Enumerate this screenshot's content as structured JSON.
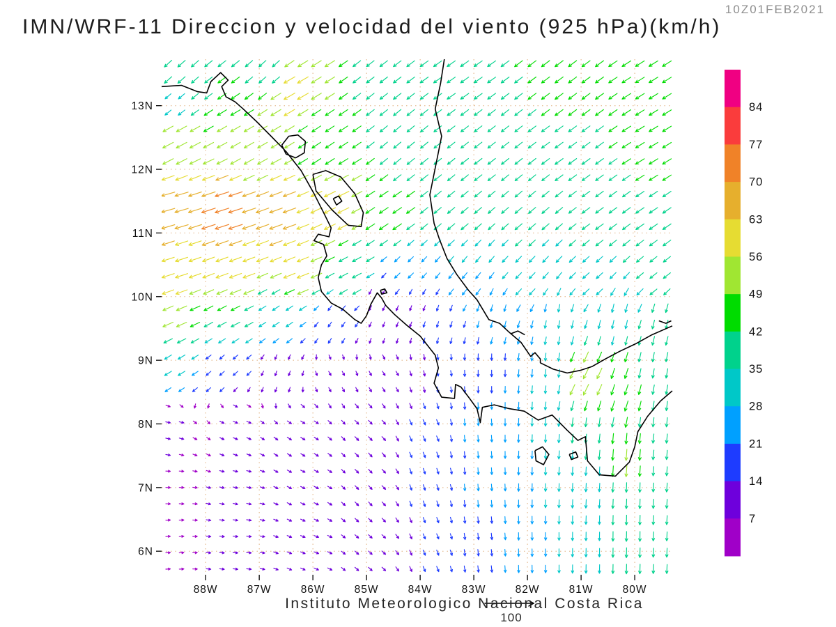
{
  "title": "IMN/WRF-11 Direccion y velocidad del viento (925 hPa)(km/h)",
  "timestamp": "10Z01FEB2021",
  "caption": "Instituto Meteorologico Nacional Costa Rica",
  "reference_vector": {
    "label": "100",
    "speed": 100
  },
  "axes": {
    "lat_labels": [
      {
        "text": "13N",
        "value": 13
      },
      {
        "text": "12N",
        "value": 12
      },
      {
        "text": "11N",
        "value": 11
      },
      {
        "text": "10N",
        "value": 10
      },
      {
        "text": "9N",
        "value": 9
      },
      {
        "text": "8N",
        "value": 8
      },
      {
        "text": "7N",
        "value": 7
      },
      {
        "text": "6N",
        "value": 6
      }
    ],
    "lon_labels": [
      {
        "text": "88W",
        "value": -88
      },
      {
        "text": "87W",
        "value": -87
      },
      {
        "text": "86W",
        "value": -86
      },
      {
        "text": "85W",
        "value": -85
      },
      {
        "text": "84W",
        "value": -84
      },
      {
        "text": "83W",
        "value": -83
      },
      {
        "text": "82W",
        "value": -82
      },
      {
        "text": "81W",
        "value": -81
      },
      {
        "text": "80W",
        "value": -80
      }
    ]
  },
  "colorbar": {
    "unit": "km/h",
    "boundary_labels_top_to_bottom": [
      "84",
      "77",
      "70",
      "63",
      "56",
      "49",
      "42",
      "35",
      "28",
      "21",
      "14",
      "7"
    ],
    "colors_bottom_to_top": [
      "#a000c8",
      "#6e00dc",
      "#1e3cff",
      "#00a0ff",
      "#00c8c8",
      "#00d28c",
      "#00dc00",
      "#a0e632",
      "#e6dc32",
      "#e6af2d",
      "#f08228",
      "#fa3c3c",
      "#f00082"
    ]
  },
  "map": {
    "extent": {
      "lon_min": -88.82,
      "lon_max": -79.3,
      "lat_min": 5.63,
      "lat_max": 13.73
    },
    "grid_lat_lines": [
      6,
      7,
      8,
      9,
      10,
      11,
      12,
      13
    ],
    "grid_lon_lines": [
      -88,
      -87,
      -86,
      -85,
      -84,
      -83,
      -82,
      -81,
      -80
    ],
    "grid_color": "#dfae7c",
    "coast_color": "#000000",
    "coastlines": [
      [
        [
          -88.82,
          13.3
        ],
        [
          -88.45,
          13.32
        ],
        [
          -88.15,
          13.22
        ],
        [
          -87.98,
          13.2
        ],
        [
          -87.9,
          13.38
        ],
        [
          -87.72,
          13.52
        ],
        [
          -87.58,
          13.4
        ],
        [
          -87.7,
          13.3
        ],
        [
          -87.62,
          13.14
        ],
        [
          -87.45,
          13.06
        ],
        [
          -87.3,
          12.95
        ],
        [
          -87.05,
          12.75
        ],
        [
          -86.78,
          12.52
        ],
        [
          -86.5,
          12.28
        ],
        [
          -86.22,
          11.98
        ],
        [
          -85.98,
          11.62
        ],
        [
          -85.8,
          11.32
        ],
        [
          -85.66,
          11.08
        ],
        [
          -85.7,
          10.94
        ],
        [
          -85.9,
          10.98
        ],
        [
          -85.98,
          10.88
        ],
        [
          -85.8,
          10.82
        ],
        [
          -85.74,
          10.64
        ],
        [
          -85.84,
          10.5
        ],
        [
          -85.9,
          10.3
        ],
        [
          -85.84,
          10.08
        ],
        [
          -85.66,
          9.9
        ],
        [
          -85.44,
          9.8
        ],
        [
          -85.22,
          9.64
        ],
        [
          -85.1,
          9.58
        ],
        [
          -85.0,
          9.7
        ],
        [
          -84.92,
          9.88
        ],
        [
          -84.8,
          10.06
        ],
        [
          -84.72,
          9.98
        ],
        [
          -84.64,
          9.86
        ],
        [
          -84.48,
          9.72
        ],
        [
          -84.25,
          9.55
        ],
        [
          -84.0,
          9.38
        ],
        [
          -83.72,
          9.08
        ],
        [
          -83.66,
          8.88
        ],
        [
          -83.74,
          8.64
        ],
        [
          -83.6,
          8.42
        ],
        [
          -83.36,
          8.4
        ],
        [
          -83.34,
          8.62
        ],
        [
          -83.24,
          8.58
        ],
        [
          -83.08,
          8.4
        ],
        [
          -82.94,
          8.24
        ],
        [
          -82.88,
          8.02
        ],
        [
          -82.84,
          8.26
        ],
        [
          -82.62,
          8.3
        ],
        [
          -82.34,
          8.24
        ],
        [
          -82.06,
          8.2
        ],
        [
          -81.8,
          8.06
        ],
        [
          -81.54,
          8.14
        ],
        [
          -81.26,
          7.9
        ],
        [
          -81.06,
          7.74
        ],
        [
          -80.92,
          7.8
        ],
        [
          -80.88,
          7.42
        ],
        [
          -80.66,
          7.2
        ],
        [
          -80.36,
          7.18
        ],
        [
          -80.1,
          7.4
        ],
        [
          -80.0,
          7.64
        ],
        [
          -79.94,
          7.88
        ],
        [
          -79.76,
          8.12
        ],
        [
          -79.52,
          8.36
        ],
        [
          -79.3,
          8.52
        ]
      ],
      [
        [
          -83.55,
          13.73
        ],
        [
          -83.62,
          13.35
        ],
        [
          -83.72,
          12.95
        ],
        [
          -83.6,
          12.52
        ],
        [
          -83.7,
          12.1
        ],
        [
          -83.82,
          11.6
        ],
        [
          -83.74,
          11.15
        ],
        [
          -83.64,
          10.9
        ],
        [
          -83.5,
          10.6
        ],
        [
          -83.32,
          10.35
        ],
        [
          -83.1,
          10.1
        ],
        [
          -82.94,
          9.95
        ],
        [
          -82.72,
          9.64
        ],
        [
          -82.52,
          9.58
        ],
        [
          -82.34,
          9.44
        ],
        [
          -82.12,
          9.28
        ],
        [
          -81.94,
          9.06
        ],
        [
          -81.86,
          9.12
        ],
        [
          -81.76,
          9.02
        ],
        [
          -81.76,
          8.96
        ],
        [
          -81.52,
          8.86
        ],
        [
          -81.26,
          8.8
        ],
        [
          -81.02,
          8.84
        ],
        [
          -80.8,
          8.9
        ],
        [
          -80.55,
          9.02
        ],
        [
          -80.28,
          9.14
        ],
        [
          -79.98,
          9.26
        ],
        [
          -79.68,
          9.4
        ],
        [
          -79.3,
          9.54
        ]
      ],
      [
        [
          -86.58,
          12.38
        ],
        [
          -86.45,
          12.52
        ],
        [
          -86.28,
          12.54
        ],
        [
          -86.14,
          12.44
        ],
        [
          -86.16,
          12.26
        ],
        [
          -86.32,
          12.18
        ],
        [
          -86.5,
          12.24
        ],
        [
          -86.58,
          12.38
        ]
      ],
      [
        [
          -86.0,
          11.92
        ],
        [
          -85.76,
          11.98
        ],
        [
          -85.48,
          11.88
        ],
        [
          -85.22,
          11.62
        ],
        [
          -85.06,
          11.32
        ],
        [
          -85.1,
          11.1
        ],
        [
          -85.34,
          11.12
        ],
        [
          -85.64,
          11.36
        ],
        [
          -85.94,
          11.66
        ],
        [
          -86.0,
          11.92
        ]
      ],
      [
        [
          -85.62,
          11.54
        ],
        [
          -85.52,
          11.58
        ],
        [
          -85.46,
          11.5
        ],
        [
          -85.56,
          11.44
        ],
        [
          -85.62,
          11.54
        ]
      ],
      [
        [
          -81.86,
          7.58
        ],
        [
          -81.72,
          7.64
        ],
        [
          -81.6,
          7.52
        ],
        [
          -81.7,
          7.36
        ],
        [
          -81.84,
          7.42
        ],
        [
          -81.86,
          7.58
        ]
      ],
      [
        [
          -81.22,
          7.52
        ],
        [
          -81.1,
          7.56
        ],
        [
          -81.06,
          7.48
        ],
        [
          -81.18,
          7.44
        ],
        [
          -81.22,
          7.52
        ]
      ],
      [
        [
          -84.74,
          10.1
        ],
        [
          -84.66,
          10.12
        ],
        [
          -84.62,
          10.06
        ],
        [
          -84.72,
          10.04
        ],
        [
          -84.74,
          10.1
        ]
      ],
      [
        [
          -82.3,
          9.42
        ],
        [
          -82.18,
          9.46
        ],
        [
          -82.05,
          9.4
        ]
      ],
      [
        [
          -79.55,
          9.62
        ],
        [
          -79.42,
          9.58
        ],
        [
          -79.32,
          9.62
        ]
      ]
    ]
  },
  "chart_data": {
    "type": "vector-field",
    "variable": "wind direction and speed, 925 hPa",
    "units": "km/h",
    "speed_levels": [
      7,
      14,
      21,
      28,
      35,
      42,
      49,
      56,
      63,
      70,
      77,
      84
    ],
    "grid_step_deg": 0.25,
    "control_points": [
      [
        -88.6,
        13.5,
        228,
        42
      ],
      [
        -86.8,
        13.55,
        228,
        38
      ],
      [
        -85.0,
        13.5,
        232,
        40
      ],
      [
        -83.2,
        13.5,
        235,
        42
      ],
      [
        -81.4,
        13.5,
        233,
        43
      ],
      [
        -79.6,
        13.4,
        238,
        45
      ],
      [
        -88.7,
        13.1,
        230,
        28
      ],
      [
        -86.4,
        13.3,
        240,
        60
      ],
      [
        -85.9,
        13.6,
        238,
        52
      ],
      [
        -88.6,
        12.4,
        242,
        55
      ],
      [
        -87.2,
        12.4,
        240,
        50
      ],
      [
        -85.8,
        12.5,
        236,
        46
      ],
      [
        -84.4,
        12.3,
        230,
        40
      ],
      [
        -82.8,
        12.4,
        232,
        40
      ],
      [
        -81.2,
        12.4,
        234,
        42
      ],
      [
        -79.7,
        12.3,
        238,
        44
      ],
      [
        -88.7,
        11.4,
        254,
        68
      ],
      [
        -87.6,
        11.3,
        252,
        72
      ],
      [
        -86.6,
        11.2,
        250,
        66
      ],
      [
        -85.6,
        11.4,
        244,
        58
      ],
      [
        -84.6,
        11.3,
        236,
        46
      ],
      [
        -83.4,
        11.3,
        230,
        38
      ],
      [
        -82.0,
        11.3,
        230,
        38
      ],
      [
        -80.6,
        11.3,
        234,
        40
      ],
      [
        -79.6,
        11.3,
        236,
        42
      ],
      [
        -88.7,
        10.4,
        252,
        62
      ],
      [
        -87.5,
        10.4,
        250,
        60
      ],
      [
        -86.3,
        10.4,
        248,
        58
      ],
      [
        -85.2,
        10.3,
        242,
        42
      ],
      [
        -84.3,
        10.3,
        226,
        26
      ],
      [
        -83.2,
        10.3,
        220,
        28
      ],
      [
        -82.0,
        10.3,
        224,
        32
      ],
      [
        -80.8,
        10.3,
        228,
        34
      ],
      [
        -79.6,
        10.3,
        232,
        36
      ],
      [
        -84.8,
        10.0,
        205,
        12
      ],
      [
        -84.2,
        9.9,
        200,
        12
      ],
      [
        -88.7,
        9.7,
        246,
        50
      ],
      [
        -87.6,
        9.7,
        242,
        42
      ],
      [
        -86.6,
        9.7,
        236,
        30
      ],
      [
        -85.6,
        9.6,
        215,
        16
      ],
      [
        -84.6,
        9.6,
        202,
        12
      ],
      [
        -83.6,
        9.6,
        198,
        16
      ],
      [
        -82.6,
        9.6,
        194,
        22
      ],
      [
        -81.5,
        9.6,
        190,
        28
      ],
      [
        -80.4,
        9.6,
        192,
        34
      ],
      [
        -79.5,
        9.6,
        194,
        36
      ],
      [
        -88.7,
        8.9,
        238,
        30
      ],
      [
        -87.6,
        8.9,
        228,
        18
      ],
      [
        -86.6,
        8.8,
        200,
        10
      ],
      [
        -85.6,
        8.8,
        150,
        8
      ],
      [
        -84.6,
        8.8,
        148,
        10
      ],
      [
        -83.7,
        8.8,
        168,
        14
      ],
      [
        -82.7,
        8.8,
        180,
        20
      ],
      [
        -81.7,
        8.8,
        184,
        28
      ],
      [
        -80.9,
        8.7,
        206,
        55
      ],
      [
        -80.3,
        8.6,
        198,
        48
      ],
      [
        -79.6,
        8.8,
        190,
        40
      ],
      [
        -88.7,
        8.0,
        102,
        8
      ],
      [
        -87.4,
        8.0,
        112,
        8
      ],
      [
        -86.2,
        7.9,
        122,
        10
      ],
      [
        -85.0,
        7.9,
        136,
        12
      ],
      [
        -83.9,
        7.9,
        156,
        15
      ],
      [
        -82.9,
        7.9,
        176,
        22
      ],
      [
        -81.9,
        7.9,
        182,
        28
      ],
      [
        -80.9,
        7.9,
        186,
        36
      ],
      [
        -80.15,
        7.4,
        184,
        50
      ],
      [
        -79.5,
        7.9,
        186,
        38
      ],
      [
        -88.7,
        7.0,
        92,
        7
      ],
      [
        -87.4,
        7.0,
        102,
        8
      ],
      [
        -86.1,
        7.0,
        116,
        9
      ],
      [
        -84.9,
        7.0,
        136,
        11
      ],
      [
        -83.8,
        7.0,
        162,
        16
      ],
      [
        -82.8,
        7.0,
        176,
        22
      ],
      [
        -81.8,
        7.0,
        181,
        28
      ],
      [
        -80.8,
        7.0,
        183,
        33
      ],
      [
        -80.0,
        6.9,
        182,
        40
      ],
      [
        -79.5,
        7.0,
        184,
        36
      ],
      [
        -88.7,
        6.1,
        86,
        7
      ],
      [
        -87.4,
        6.1,
        96,
        8
      ],
      [
        -86.1,
        6.1,
        112,
        9
      ],
      [
        -84.9,
        6.1,
        132,
        10
      ],
      [
        -83.8,
        6.1,
        158,
        14
      ],
      [
        -82.8,
        6.1,
        174,
        20
      ],
      [
        -81.8,
        6.1,
        179,
        27
      ],
      [
        -80.8,
        6.1,
        181,
        33
      ],
      [
        -80.1,
        6.2,
        181,
        42
      ],
      [
        -79.5,
        6.1,
        183,
        36
      ]
    ]
  }
}
